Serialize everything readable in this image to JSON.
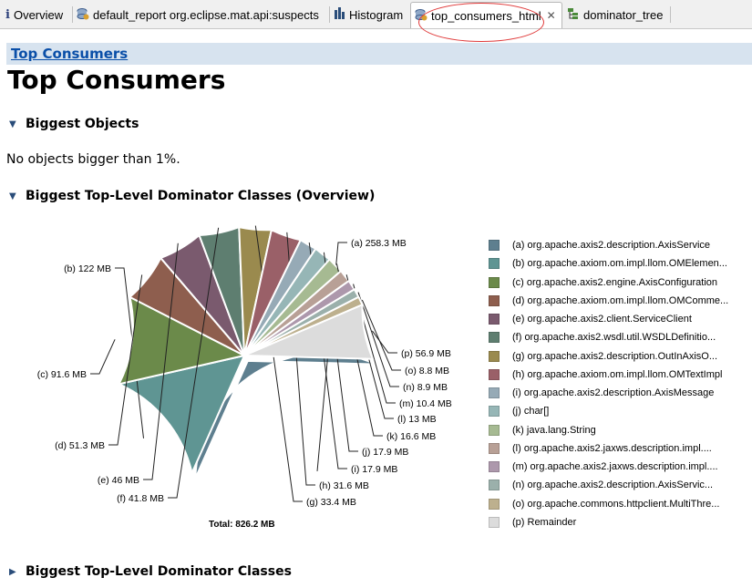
{
  "tabs": [
    {
      "label": "Overview",
      "icon": "info-icon"
    },
    {
      "label": "default_report  org.eclipse.mat.api:suspects",
      "icon": "report-icon"
    },
    {
      "label": "Histogram",
      "icon": "histogram-icon"
    },
    {
      "label": "top_consumers_html",
      "icon": "report-icon",
      "active": true
    },
    {
      "label": "dominator_tree",
      "icon": "tree-icon"
    }
  ],
  "breadcrumb": "Top Consumers",
  "page_title": "Top Consumers",
  "sections": {
    "biggest_objects": "Biggest Objects",
    "no_objects": "No objects bigger than 1%.",
    "overview": "Biggest Top-Level Dominator Classes (Overview)",
    "classes": "Biggest Top-Level Dominator Classes"
  },
  "chart_data": {
    "type": "pie",
    "total_label": "Total: 826.2 MB",
    "slices": [
      {
        "key": "(a)",
        "value": 258.3,
        "label": "258.3 MB",
        "name": "org.apache.axis2.description.AxisService",
        "color": "#5e7f8f"
      },
      {
        "key": "(b)",
        "value": 122,
        "label": "122 MB",
        "name": "org.apache.axiom.om.impl.llom.OMElemen...",
        "color": "#5f9593"
      },
      {
        "key": "(c)",
        "value": 91.6,
        "label": "91.6 MB",
        "name": "org.apache.axis2.engine.AxisConfiguration",
        "color": "#6b8a4a"
      },
      {
        "key": "(d)",
        "value": 51.3,
        "label": "51.3 MB",
        "name": "org.apache.axiom.om.impl.llom.OMComme...",
        "color": "#8e5e4e"
      },
      {
        "key": "(e)",
        "value": 46,
        "label": "46 MB",
        "name": "org.apache.axis2.client.ServiceClient",
        "color": "#7a5a6e"
      },
      {
        "key": "(f)",
        "value": 41.8,
        "label": "41.8 MB",
        "name": "org.apache.axis2.wsdl.util.WSDLDefinitio...",
        "color": "#5e7e70"
      },
      {
        "key": "(g)",
        "value": 33.4,
        "label": "33.4 MB",
        "name": "org.apache.axis2.description.OutInAxisO...",
        "color": "#9a8a4e"
      },
      {
        "key": "(h)",
        "value": 31.6,
        "label": "31.6 MB",
        "name": "org.apache.axiom.om.impl.llom.OMTextImpl",
        "color": "#9a6068"
      },
      {
        "key": "(i)",
        "value": 17.9,
        "label": "17.9 MB",
        "name": "org.apache.axis2.description.AxisMessage",
        "color": "#96aab6"
      },
      {
        "key": "(j)",
        "value": 17.9,
        "label": "17.9 MB",
        "name": "char[]",
        "color": "#96b6b6"
      },
      {
        "key": "(k)",
        "value": 16.6,
        "label": "16.6 MB",
        "name": "java.lang.String",
        "color": "#a6ba92"
      },
      {
        "key": "(l)",
        "value": 13,
        "label": "13 MB",
        "name": "org.apache.axis2.jaxws.description.impl....",
        "color": "#b8a096"
      },
      {
        "key": "(m)",
        "value": 10.4,
        "label": "10.4 MB",
        "name": "org.apache.axis2.jaxws.description.impl....",
        "color": "#ad98ac"
      },
      {
        "key": "(n)",
        "value": 8.9,
        "label": "8.9 MB",
        "name": "org.apache.axis2.description.AxisServic...",
        "color": "#9bb0ab"
      },
      {
        "key": "(o)",
        "value": 8.8,
        "label": "8.8 MB",
        "name": "org.apache.commons.httpclient.MultiThre...",
        "color": "#bdb08e"
      },
      {
        "key": "(p)",
        "value": 56.9,
        "label": "56.9 MB",
        "name": "Remainder",
        "color": "#dcdcdc"
      }
    ]
  }
}
